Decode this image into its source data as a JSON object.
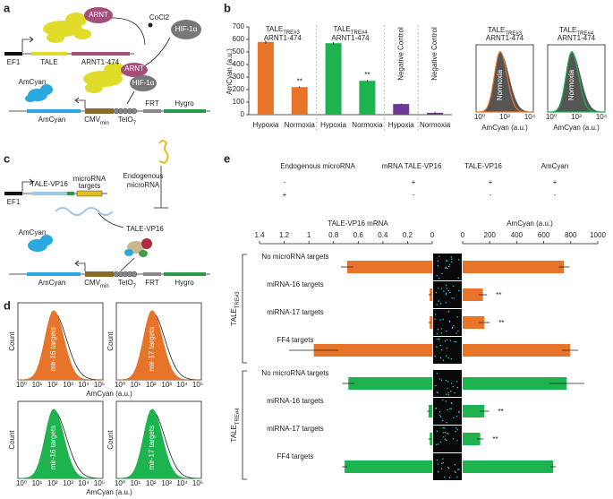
{
  "panel_labels": [
    "a",
    "b",
    "c",
    "d",
    "e"
  ],
  "panel_a": {
    "arnt": "ARNT",
    "cocl2": "CoCl2",
    "hif": "HIF-1α",
    "ef1": "EF1",
    "tale": "TALE",
    "arnt_domain": "ARNT1-474",
    "arnt2": "ARNT",
    "hif2": "HIF-1α",
    "protein": "AmCyan",
    "amcyan": "AmCyan",
    "cmv": "CMV",
    "cmv_sub": "min",
    "teto": "TetO",
    "teto_sub": "7",
    "frt": "FRT",
    "hygro": "Hygro"
  },
  "panel_c": {
    "mirna": [
      "Endogenous",
      "microRNA"
    ],
    "targets": [
      "microRNA",
      "targets"
    ],
    "ef1": "EF1",
    "tale": "TALE-VP16",
    "protein": "TALE-VP16",
    "amcyan_protein": "AmCyan",
    "amcyan": "AmCyan",
    "cmv": "CMV",
    "cmv_sub": "min",
    "teto": "TetO",
    "teto_sub": "7",
    "frt": "FRT",
    "hygro": "Hygro"
  },
  "panel_b_hist": {
    "titles": [
      {
        "name": "TALE",
        "sub": "TRE#3",
        "line2": "ARNT1-474"
      },
      {
        "name": "TALE",
        "sub": "TRE#4",
        "line2": "ARNT1-474"
      }
    ],
    "inner": "Normoxia",
    "xlabel": "AmCyan (a.u.)",
    "xticks": [
      "10⁰",
      "10²",
      "10⁴"
    ]
  },
  "panel_d": {
    "ylabel": "Count",
    "xlabel": "AmCyan (a.u.)",
    "xticks": [
      "10⁰",
      "10¹",
      "10²",
      "10³",
      "10⁴",
      "10⁵"
    ],
    "panels": [
      "mir-16 targets",
      "mir-17 targets",
      "mir-16 targets",
      "mir-17 targets"
    ]
  },
  "panel_e_table": {
    "headers": [
      "Endogenous microRNA",
      "mRNA TALE-VP16",
      "TALE-VP16",
      "AmCyan"
    ],
    "rows": [
      [
        "-",
        "+",
        "+",
        "+"
      ],
      [
        "+",
        "-",
        "-",
        "-"
      ]
    ]
  },
  "chart_data": [
    {
      "type": "bar",
      "ylabel": "AmCyan (a.u.)",
      "categories": [
        "Hypoxia",
        "Normoxia",
        "Hypoxia",
        "Normoxia",
        "Hypoxia",
        "Normoxia"
      ],
      "values": [
        580,
        220,
        570,
        270,
        85,
        15
      ],
      "errors": [
        15,
        5,
        10,
        8,
        5,
        10
      ],
      "colors": [
        "#e8742a",
        "#e8742a",
        "#1db34e",
        "#1db34e",
        "#6d3a96",
        "#6d3a96"
      ],
      "significance": [
        null,
        "**",
        null,
        "**",
        null,
        null
      ],
      "groups": [
        {
          "name": "TALE",
          "sub": "TRE#3",
          "line2": "ARNT1-474"
        },
        {
          "name": "TALE",
          "sub": "TRE#4",
          "line2": "ARNT1-474"
        },
        {
          "name": "Negative Control"
        },
        {
          "name": "Negative Control"
        }
      ],
      "ylim": [
        0,
        700
      ],
      "yticks": [
        0,
        100,
        200,
        300,
        400,
        500,
        600,
        700
      ]
    },
    {
      "type": "hbar",
      "xlabel": "TALE-VP16 mRNA",
      "categories": [
        "No microRNA targets",
        "miRNA-16 targets",
        "miRNA-17 targets",
        "FF4 targets",
        "No microRNA targets",
        "miRNA-16 targets",
        "miRNA-17 targets",
        "FF4 targets"
      ],
      "groups": [
        {
          "name": "TALE",
          "sub": "TRE#3"
        },
        {
          "name": "TALE",
          "sub": "TRE#4"
        }
      ],
      "values": [
        0.69,
        0.02,
        0.02,
        0.96,
        0.68,
        0.03,
        0.02,
        0.71
      ],
      "errors": [
        0.05,
        0.01,
        0.01,
        0.2,
        0.05,
        0.01,
        0.01,
        0.02
      ],
      "colors": [
        "#e8742a",
        "#e8742a",
        "#e8742a",
        "#e8742a",
        "#1db34e",
        "#1db34e",
        "#1db34e",
        "#1db34e"
      ],
      "xlim": [
        1.4,
        0
      ],
      "xticks": [
        1.4,
        1.2,
        1,
        0.8,
        0.6,
        0.4,
        0.2,
        0
      ]
    },
    {
      "type": "hbar",
      "xlabel": "AmCyan (a.u.)",
      "values": [
        750,
        150,
        160,
        795,
        770,
        160,
        130,
        670
      ],
      "errors": [
        40,
        30,
        40,
        60,
        130,
        35,
        25,
        20
      ],
      "colors": [
        "#e8742a",
        "#e8742a",
        "#e8742a",
        "#e8742a",
        "#1db34e",
        "#1db34e",
        "#1db34e",
        "#1db34e"
      ],
      "significance": [
        null,
        "**",
        "**",
        null,
        null,
        "**",
        "**",
        null
      ],
      "xlim": [
        0,
        1000
      ],
      "xticks": [
        0,
        200,
        400,
        600,
        800,
        1000
      ]
    }
  ]
}
